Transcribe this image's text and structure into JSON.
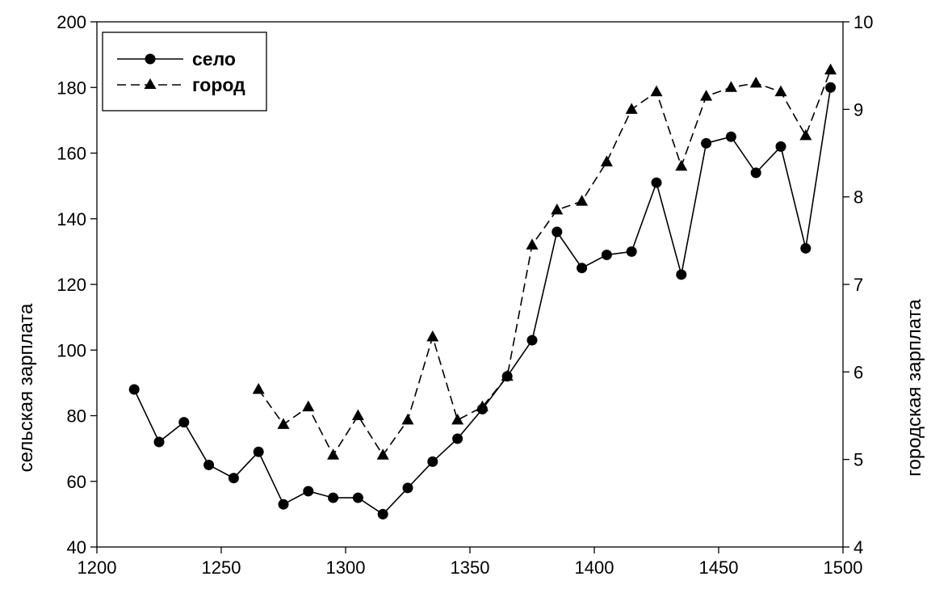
{
  "chart_data": {
    "type": "line",
    "title": "",
    "xlabel": "",
    "ylabel": "сельская зарплата",
    "y2label": "городская зарплата",
    "xlim": [
      1200,
      1500
    ],
    "ylim": [
      40,
      200
    ],
    "y2lim": [
      4,
      10
    ],
    "xticks": [
      "1200",
      "1250",
      "1300",
      "1350",
      "1400",
      "1450",
      "1500"
    ],
    "yticks": [
      "40",
      "60",
      "80",
      "100",
      "120",
      "140",
      "160",
      "180",
      "200"
    ],
    "y2ticks": [
      "4",
      "5",
      "6",
      "7",
      "8",
      "9",
      "10"
    ],
    "grid": false,
    "legend_position": "top-left",
    "series": [
      {
        "name": "село",
        "axis": "left",
        "marker": "circle",
        "line_style": "solid",
        "color": "#000000",
        "x": [
          1215,
          1225,
          1235,
          1245,
          1255,
          1265,
          1275,
          1285,
          1295,
          1305,
          1315,
          1325,
          1335,
          1345,
          1355,
          1365,
          1375,
          1385,
          1395,
          1405,
          1415,
          1425,
          1435,
          1445,
          1455,
          1465,
          1475,
          1485,
          1495
        ],
        "values": [
          88,
          72,
          78,
          65,
          61,
          69,
          53,
          57,
          55,
          55,
          50,
          58,
          66,
          73,
          82,
          92,
          103,
          136,
          125,
          129,
          130,
          151,
          123,
          163,
          165,
          154,
          162,
          131,
          180
        ]
      },
      {
        "name": "город",
        "axis": "right",
        "marker": "triangle",
        "line_style": "dashed",
        "color": "#000000",
        "x": [
          1265,
          1275,
          1285,
          1295,
          1305,
          1315,
          1325,
          1335,
          1345,
          1355,
          1365,
          1375,
          1385,
          1395,
          1405,
          1415,
          1425,
          1435,
          1445,
          1455,
          1465,
          1475,
          1485,
          1495
        ],
        "values": [
          5.8,
          5.4,
          5.6,
          5.05,
          5.5,
          5.05,
          5.45,
          6.4,
          5.45,
          5.6,
          5.95,
          7.45,
          7.85,
          7.95,
          8.4,
          9.0,
          9.2,
          8.35,
          9.15,
          9.25,
          9.3,
          9.2,
          8.7,
          9.45
        ]
      }
    ]
  }
}
